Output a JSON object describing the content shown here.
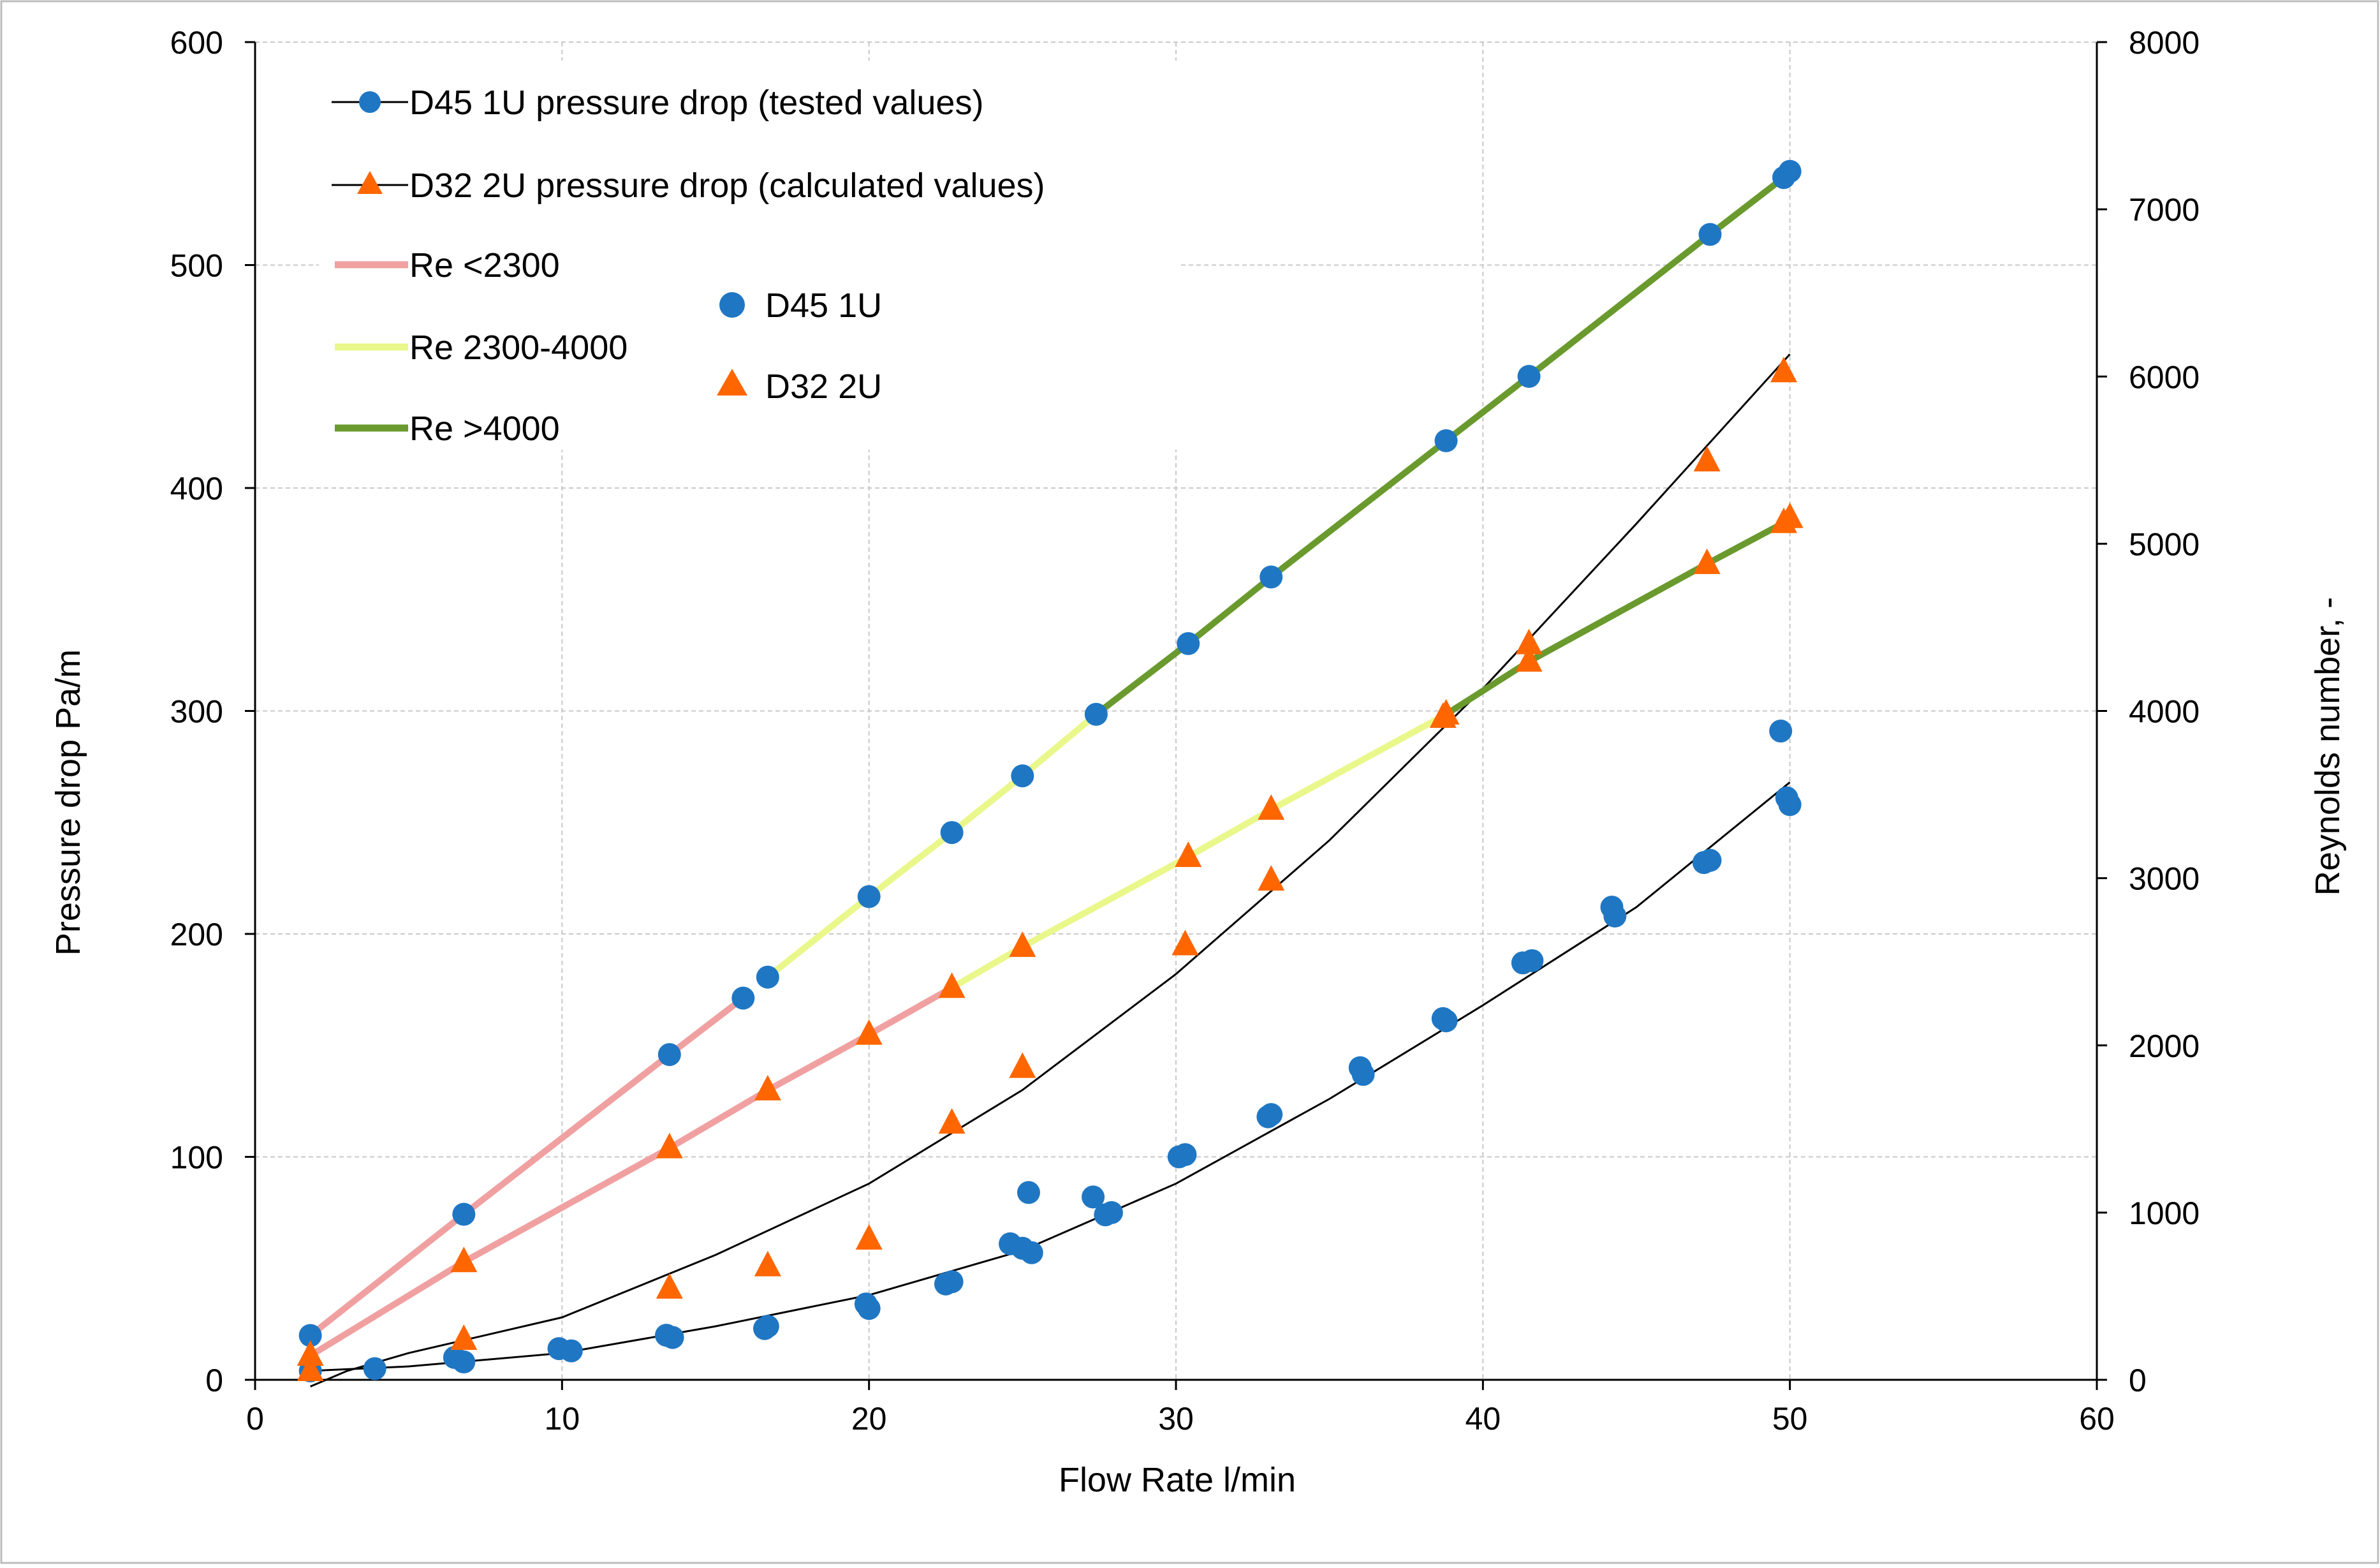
{
  "chart_data": {
    "type": "scatter",
    "title": "",
    "xlabel": "Flow Rate l/min",
    "ylabel": "Pressure drop  Pa/m",
    "y2label": "Reynolds number, -",
    "xlim": [
      0,
      60
    ],
    "ylim": [
      0,
      600
    ],
    "y2lim": [
      0,
      8000
    ],
    "x_ticks": [
      "0",
      "10",
      "20",
      "30",
      "40",
      "50",
      "60"
    ],
    "y_ticks": [
      "0",
      "100",
      "200",
      "300",
      "400",
      "500",
      "600"
    ],
    "y2_ticks": [
      "0",
      "1000",
      "2000",
      "3000",
      "4000",
      "5000",
      "6000",
      "7000",
      "8000"
    ],
    "grid": true,
    "colors": {
      "d45": "#1f77c4",
      "d32": "#ff6600",
      "re_low": "#f0a0a0",
      "re_mid": "#eaf78a",
      "re_high": "#6a9a2e",
      "trend": "#000000",
      "grid": "#c8c8c8"
    },
    "legend": {
      "pressure_d45": "D45 1U pressure drop (tested values)",
      "pressure_d32": "D32 2U pressure drop (calculated values)",
      "re_low": "Re <2300",
      "re_mid": "Re 2300-4000",
      "re_high": "Re >4000",
      "reynolds_d45": "D45 1U",
      "reynolds_d32": "D32 2U"
    },
    "series": [
      {
        "name": "D45 1U pressure drop (tested values)",
        "axis": "left",
        "marker": "circle",
        "x": [
          1.8,
          3.9,
          6.5,
          6.8,
          9.9,
          10.3,
          13.4,
          13.6,
          16.6,
          16.7,
          19.9,
          20.0,
          22.5,
          22.7,
          24.6,
          25.0,
          25.2,
          25.3,
          27.3,
          27.7,
          27.9,
          30.1,
          30.3,
          33.0,
          33.1,
          36.0,
          36.1,
          38.7,
          38.8,
          41.3,
          41.6,
          44.2,
          44.3,
          47.2,
          47.4,
          49.7,
          49.9,
          50.0
        ],
        "y": [
          4,
          5,
          10,
          8,
          14,
          13,
          20,
          19,
          23,
          24,
          34,
          32,
          43,
          44,
          61,
          59,
          84,
          57,
          82,
          74,
          75,
          100,
          101,
          118,
          119,
          140,
          137,
          162,
          161,
          187,
          188,
          212,
          208,
          232,
          233,
          291,
          261,
          258
        ]
      },
      {
        "name": "D32 2U pressure drop (calculated values)",
        "axis": "left",
        "marker": "triangle",
        "x": [
          1.8,
          6.8,
          13.5,
          16.7,
          20.0,
          22.7,
          25.0,
          30.3,
          33.1,
          38.7,
          41.5,
          47.3,
          49.8
        ],
        "y": [
          4,
          18,
          41,
          51,
          63,
          115,
          140,
          195,
          224,
          297,
          330,
          412,
          452
        ]
      },
      {
        "name": "D45 1U",
        "axis": "right",
        "marker": "circle",
        "x": [
          1.8,
          6.8,
          13.5,
          15.9,
          16.7,
          20.0,
          22.7,
          25.0,
          27.4,
          30.4,
          33.1,
          38.8,
          41.5,
          47.4,
          49.8,
          50.0
        ],
        "y": [
          265,
          990,
          1945,
          2283,
          2408,
          2890,
          3273,
          3612,
          3980,
          4403,
          4801,
          5616,
          6001,
          6850,
          7190,
          7227
        ]
      },
      {
        "name": "D32 2U",
        "axis": "right",
        "marker": "triangle",
        "x": [
          1.8,
          6.8,
          13.5,
          16.7,
          20.0,
          22.7,
          25.0,
          30.4,
          33.1,
          38.8,
          41.5,
          47.3,
          49.8,
          50.0
        ],
        "y": [
          145,
          705,
          1386,
          1732,
          2065,
          2345,
          2590,
          3128,
          3410,
          3980,
          4296,
          4880,
          5125,
          5155
        ]
      },
      {
        "name": "Re <2300",
        "axis": "right",
        "style": "line",
        "segments": [
          {
            "x": [
              1.8,
              6.8,
              13.5,
              15.9
            ],
            "y": [
              265,
              990,
              1945,
              2283
            ]
          },
          {
            "x": [
              1.8,
              6.8,
              13.5,
              16.7,
              20.0,
              22.7
            ],
            "y": [
              145,
              705,
              1386,
              1732,
              2065,
              2345
            ]
          }
        ]
      },
      {
        "name": "Re 2300-4000",
        "axis": "right",
        "style": "line",
        "segments": [
          {
            "x": [
              16.7,
              20.0,
              22.7,
              25.0,
              27.4
            ],
            "y": [
              2408,
              2890,
              3273,
              3612,
              3980
            ]
          },
          {
            "x": [
              22.7,
              25.0,
              30.4,
              33.1,
              38.8
            ],
            "y": [
              2345,
              2590,
              3128,
              3410,
              3980
            ]
          }
        ]
      },
      {
        "name": "Re >4000",
        "axis": "right",
        "style": "line",
        "segments": [
          {
            "x": [
              27.4,
              30.4,
              33.1,
              38.8,
              41.5,
              47.4,
              49.8,
              50.0
            ],
            "y": [
              3980,
              4403,
              4801,
              5616,
              6001,
              6850,
              7190,
              7227
            ]
          },
          {
            "x": [
              38.8,
              41.5,
              47.3,
              49.8,
              50.0
            ],
            "y": [
              3980,
              4296,
              4880,
              5125,
              5155
            ]
          }
        ]
      },
      {
        "name": "D45 1U trend",
        "axis": "left",
        "style": "thin-line",
        "x": [
          1.8,
          5,
          10,
          15,
          20,
          25,
          30,
          35,
          40,
          45,
          50
        ],
        "y": [
          4,
          6,
          12,
          24,
          38,
          58,
          88,
          126,
          168,
          212,
          268
        ]
      },
      {
        "name": "D32 2U trend",
        "axis": "left",
        "style": "thin-line",
        "x": [
          1.8,
          3,
          5,
          10,
          15,
          20,
          25,
          30,
          35,
          40,
          45,
          50
        ],
        "y": [
          -3,
          4,
          12,
          28,
          56,
          88,
          130,
          182,
          242,
          310,
          384,
          460
        ]
      }
    ]
  }
}
